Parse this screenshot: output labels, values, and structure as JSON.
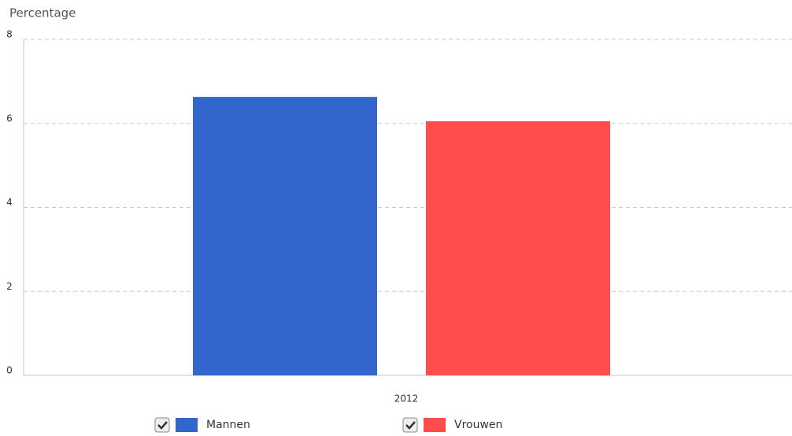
{
  "chart_data": {
    "type": "bar",
    "y_label": "Percentage",
    "categories": [
      "2012"
    ],
    "series": [
      {
        "name": "Mannen",
        "color": "#3366cc",
        "values": [
          6.63
        ]
      },
      {
        "name": "Vrouwen",
        "color": "#ff4d4d",
        "values": [
          6.05
        ]
      }
    ],
    "ylim": [
      0,
      8
    ],
    "yticks": [
      0,
      2,
      4,
      6,
      8
    ],
    "grid": true,
    "legend": "bottom"
  }
}
